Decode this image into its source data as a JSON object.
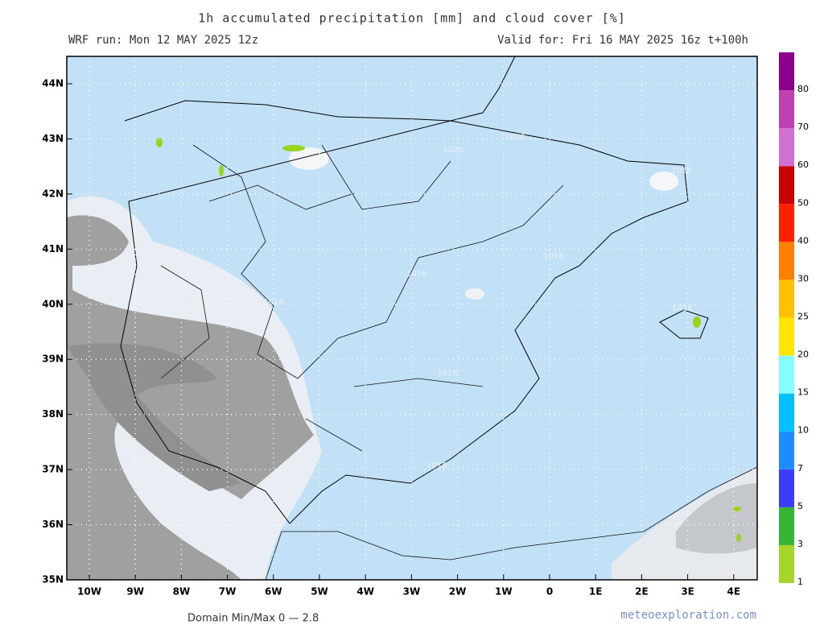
{
  "header": {
    "title": "1h accumulated precipitation [mm] and cloud cover [%]",
    "run": "WRF run: Mon 12 MAY 2025 12z",
    "valid": "Valid for: Fri 16 MAY 2025 16z  t+100h"
  },
  "map": {
    "lat_labels": [
      "44N",
      "43N",
      "42N",
      "41N",
      "40N",
      "39N",
      "38N",
      "37N",
      "36N",
      "35N"
    ],
    "lon_labels": [
      "10W",
      "9W",
      "8W",
      "7W",
      "6W",
      "5W",
      "4W",
      "3W",
      "2W",
      "1W",
      "0",
      "1E",
      "2E",
      "3E",
      "4E"
    ],
    "isobar_labels": [
      "1020",
      "1020",
      "1016",
      "1016",
      "1016",
      "1016",
      "1016",
      "1016",
      "1016"
    ]
  },
  "colorbar": {
    "labels": [
      "1",
      "3",
      "5",
      "7",
      "10",
      "15",
      "20",
      "25",
      "30",
      "40",
      "50",
      "60",
      "70",
      "80"
    ],
    "colors": [
      "#a6d52a",
      "#36b436",
      "#3c3cff",
      "#1e8cff",
      "#00c0ff",
      "#84ffff",
      "#ffe600",
      "#ffc000",
      "#ff8000",
      "#ff2000",
      "#c80000",
      "#d070d0",
      "#c040b0",
      "#8c008c"
    ]
  },
  "footer": {
    "minmax": "Domain Min/Max 0 — 2.8",
    "site": "meteoexploration.com"
  }
}
